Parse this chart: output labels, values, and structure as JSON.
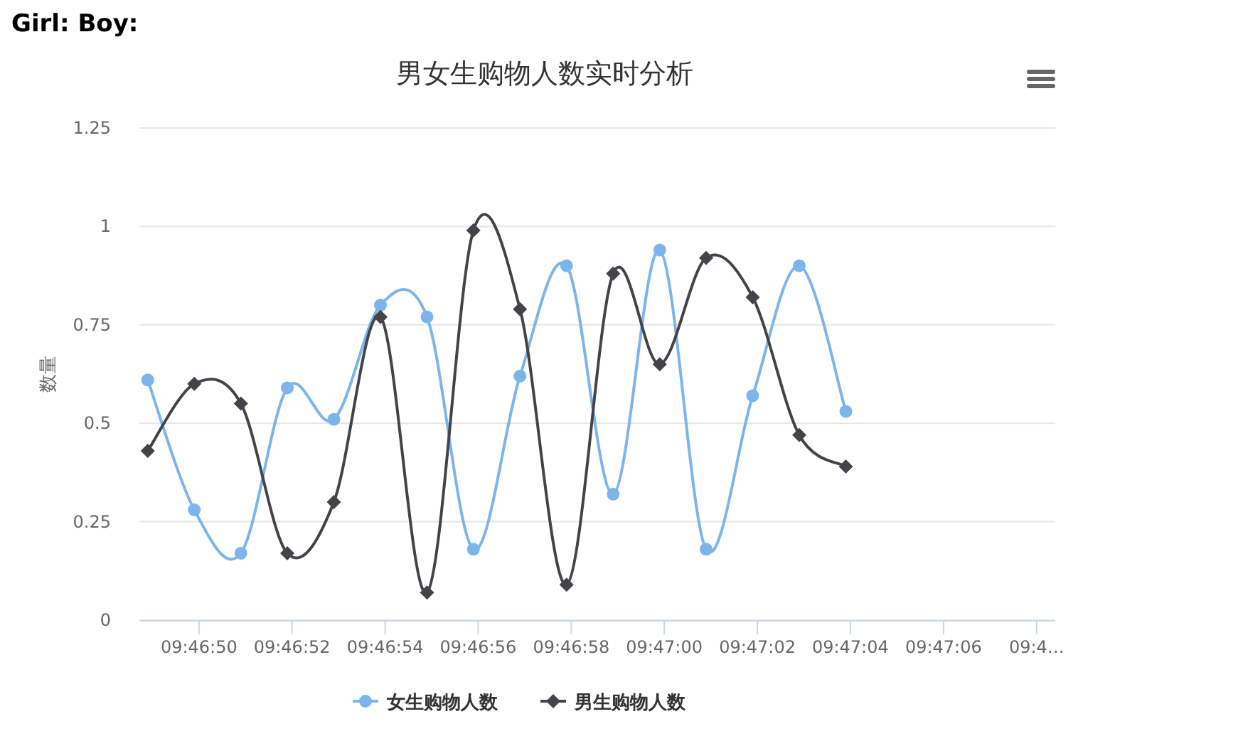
{
  "chart_data": {
    "type": "line",
    "title": "男女生购物人数实时分析",
    "ylabel": "数量",
    "annotations": [
      "**Girl: Boy:**"
    ],
    "x": [
      9.78025,
      9.780528,
      9.780806,
      9.781083,
      9.781361,
      9.781639,
      9.781917,
      9.782194,
      9.782472,
      9.78275,
      9.783028,
      9.783306,
      9.783583,
      9.783861,
      9.784139,
      9.784417
    ],
    "series": [
      {
        "name": "女生购物人数",
        "color": "#7cb5ec",
        "marker": "circle",
        "values": [
          0.61,
          0.28,
          0.17,
          0.59,
          0.51,
          0.8,
          0.77,
          0.18,
          0.62,
          0.9,
          0.32,
          0.94,
          0.18,
          0.57,
          0.9,
          0.53
        ]
      },
      {
        "name": "男生购物人数",
        "color": "#434348",
        "marker": "diamond",
        "values": [
          0.43,
          0.6,
          0.55,
          0.17,
          0.3,
          0.77,
          0.07,
          0.99,
          0.79,
          0.09,
          0.88,
          0.65,
          0.92,
          0.82,
          0.47,
          0.39
        ]
      }
    ],
    "xlim": [
      9.7802,
      9.785667
    ],
    "xticks": [
      {
        "value": 9.780556,
        "label": "09:46:50"
      },
      {
        "value": 9.781111,
        "label": "09:46:52"
      },
      {
        "value": 9.781667,
        "label": "09:46:54"
      },
      {
        "value": 9.782222,
        "label": "09:46:56"
      },
      {
        "value": 9.782778,
        "label": "09:46:58"
      },
      {
        "value": 9.783333,
        "label": "09:47:00"
      },
      {
        "value": 9.783889,
        "label": "09:47:02"
      },
      {
        "value": 9.784444,
        "label": "09:47:04"
      },
      {
        "value": 9.785,
        "label": "09:47:06"
      },
      {
        "value": 9.785556,
        "label": "09:4…"
      }
    ],
    "ylim": [
      0,
      1.25
    ],
    "yticks": [
      0,
      0.25,
      0.5,
      0.75,
      1,
      1.25
    ],
    "grid": "y",
    "legend": "bottom"
  }
}
